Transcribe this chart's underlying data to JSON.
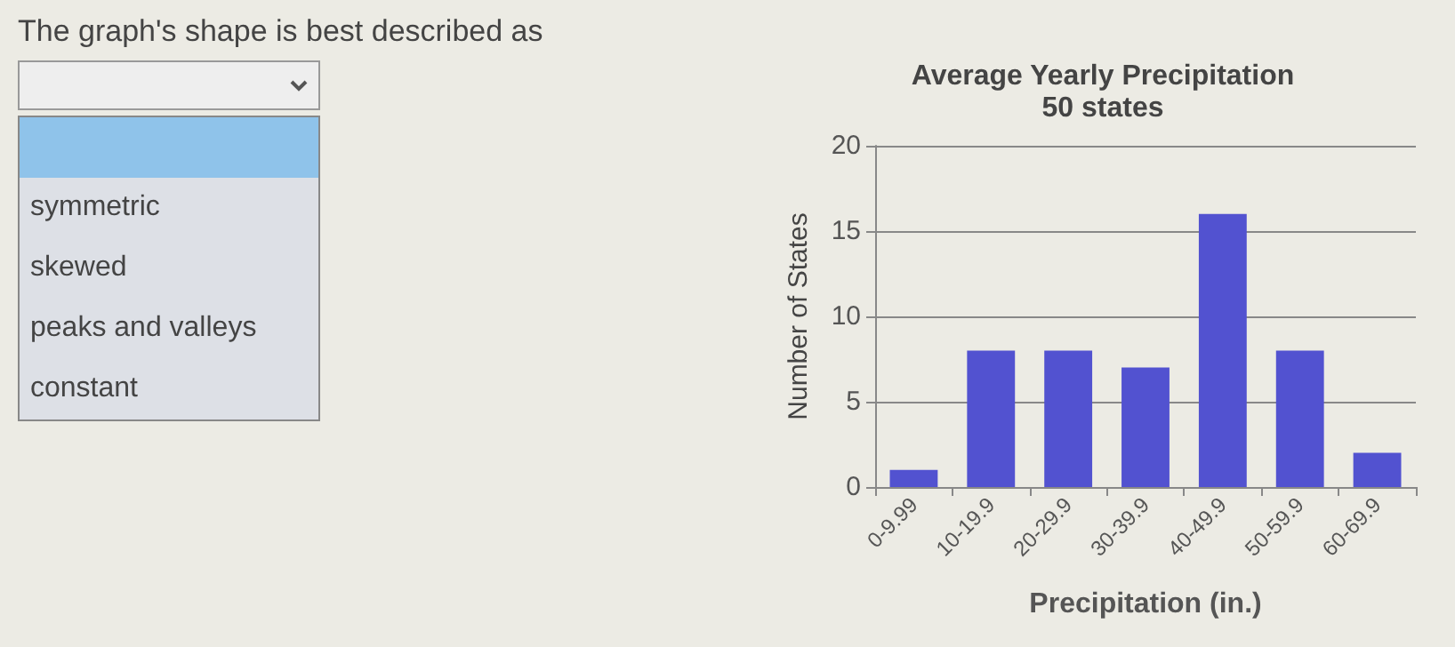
{
  "chart_data": [
    {
      "type": "other",
      "title": "The graph's shape is best described as",
      "annotations": [
        "symmetric",
        "skewed",
        "peaks and valleys",
        "constant"
      ]
    },
    {
      "type": "bar",
      "title": "Average Yearly Precipitation",
      "subtitle": "50 states",
      "xlabel": "Precipitation (in.)",
      "ylabel": "Number of States",
      "categories": [
        "0-9.99",
        "10-19.9",
        "20-29.9",
        "30-39.9",
        "40-49.9",
        "50-59.9",
        "60-69.9"
      ],
      "values": [
        1,
        8,
        8,
        7,
        16,
        8,
        2
      ],
      "color": "#5252d0",
      "ylim": [
        0,
        20
      ],
      "yticks": [
        0,
        5,
        10,
        15,
        20
      ],
      "grid": "y"
    }
  ]
}
